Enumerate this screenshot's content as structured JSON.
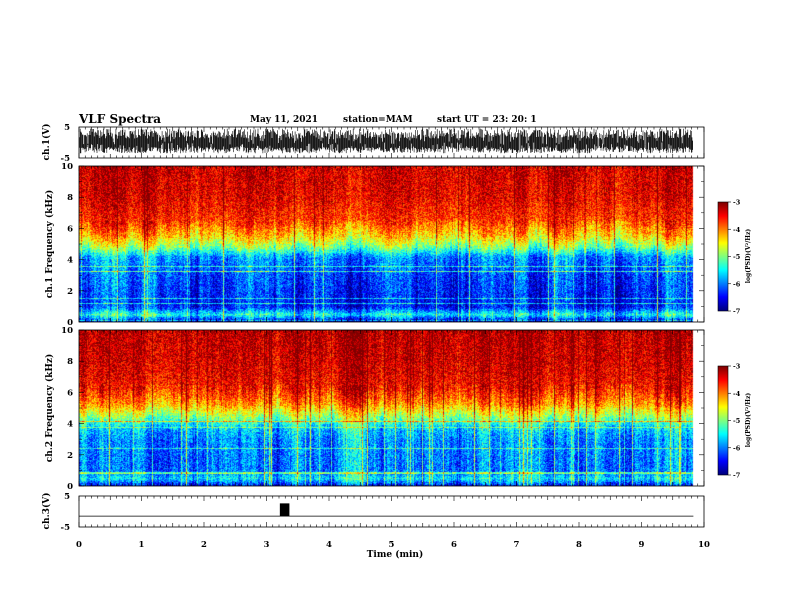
{
  "header": {
    "title": "VLF Spectra",
    "date": "May 11, 2021",
    "station": "station=MAM",
    "start_ut": "start  UT  =   23: 20: 1"
  },
  "chart_data": [
    {
      "type": "line",
      "panel": "waveform-ch1",
      "ylabel": "ch.1(V)",
      "ylim": [
        -5,
        5
      ],
      "yticks": [
        "5",
        "-5"
      ],
      "xlim": [
        0,
        10
      ],
      "waveform_range": [
        -3.5,
        4.5
      ],
      "data_extent_min": 9.83
    },
    {
      "type": "heatmap",
      "panel": "spectrogram-ch1",
      "ylabel": "ch.1 Frequency (kHz)",
      "xlim": [
        0,
        10
      ],
      "ylim": [
        0,
        10
      ],
      "yticks": [
        "0",
        "2",
        "4",
        "6",
        "8",
        "10"
      ],
      "colorbar": {
        "label": "log(PSD)(V²/Hz)",
        "range": [
          -7,
          -3
        ],
        "ticks": [
          "-3",
          "-4",
          "-5",
          "-6",
          "-7"
        ]
      },
      "profile_khz_log_psd": [
        [
          0,
          -6.8
        ],
        [
          0.5,
          -5.4
        ],
        [
          1,
          -6.4
        ],
        [
          3,
          -6.2
        ],
        [
          4.2,
          -5.9
        ],
        [
          4.8,
          -5.0
        ],
        [
          5.5,
          -4.3
        ],
        [
          6.5,
          -3.7
        ],
        [
          8,
          -3.4
        ],
        [
          10,
          -3.3
        ]
      ]
    },
    {
      "type": "heatmap",
      "panel": "spectrogram-ch2",
      "ylabel": "ch.2 Frequency (kHz)",
      "xlim": [
        0,
        10
      ],
      "ylim": [
        0,
        10
      ],
      "yticks": [
        "0",
        "2",
        "4",
        "6",
        "8",
        "10"
      ],
      "colorbar": {
        "label": "log(PSD)(V²/Hz)",
        "range": [
          -7,
          -3
        ],
        "ticks": [
          "-3",
          "-4",
          "-5",
          "-6",
          "-7"
        ]
      },
      "profile_khz_log_psd": [
        [
          0,
          -6.5
        ],
        [
          0.5,
          -5.5
        ],
        [
          1,
          -6.0
        ],
        [
          3,
          -5.9
        ],
        [
          3.8,
          -5.6
        ],
        [
          4.5,
          -4.8
        ],
        [
          5.3,
          -4.0
        ],
        [
          6.3,
          -3.5
        ],
        [
          8,
          -3.3
        ],
        [
          10,
          -3.2
        ]
      ]
    },
    {
      "type": "line",
      "panel": "waveform-ch3",
      "ylabel": "ch.3(V)",
      "ylim": [
        -5,
        5
      ],
      "yticks": [
        "5",
        "-5"
      ],
      "xlim": [
        0,
        10
      ],
      "baseline_v": -1.5,
      "pulse": {
        "t_start_min": 3.22,
        "t_end_min": 3.36,
        "v_low": -1.5,
        "v_high": 2.5
      },
      "xlabel": "Time  (min)",
      "xticks": [
        "0",
        "1",
        "2",
        "3",
        "4",
        "5",
        "6",
        "7",
        "8",
        "9",
        "10"
      ]
    }
  ]
}
